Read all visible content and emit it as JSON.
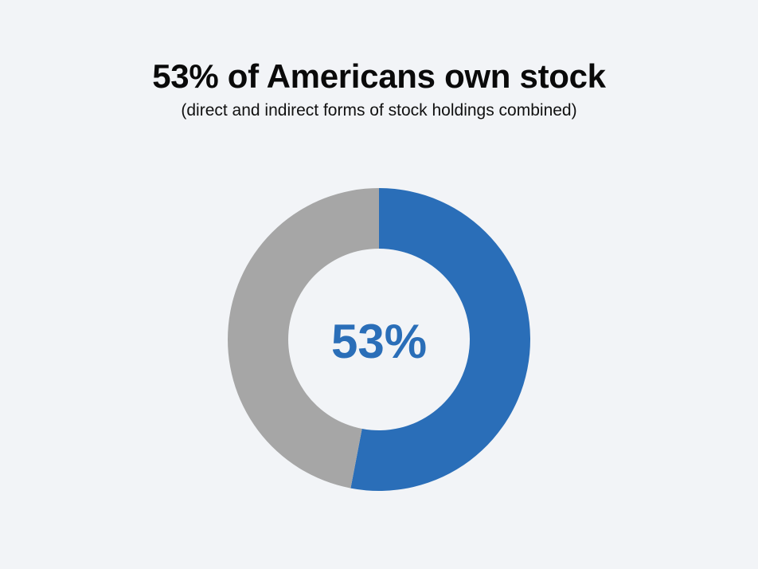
{
  "title": "53% of Americans own stock",
  "subtitle": "(direct and indirect forms of stock holdings combined)",
  "colors": {
    "background": "#f2f4f7",
    "own": "#2a6eb8",
    "rest": "#a6a6a6"
  },
  "chart_data": {
    "type": "pie",
    "donut": true,
    "values": [
      53,
      47
    ],
    "center_label": "53%",
    "colors": [
      "#2a6eb8",
      "#a6a6a6"
    ]
  }
}
